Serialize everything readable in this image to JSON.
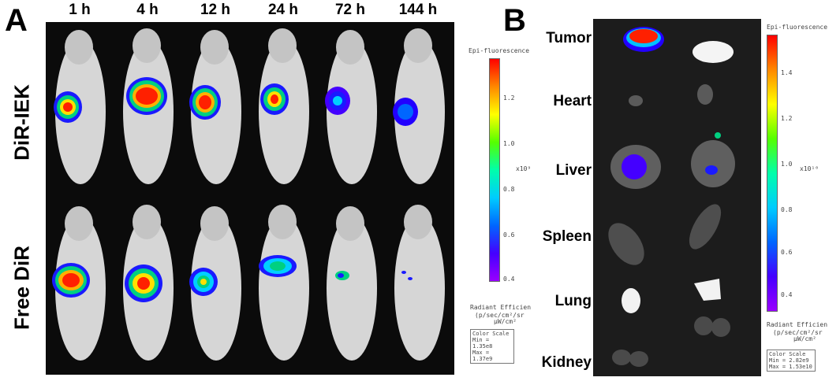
{
  "panel_a": {
    "letter": "A",
    "time_points": [
      "1 h",
      "4 h",
      "12 h",
      "24 h",
      "72 h",
      "144 h"
    ],
    "rows": [
      "DiR-IEK",
      "Free DiR"
    ],
    "colorbar": {
      "title": "Epi-fluorescence",
      "ticks": [
        "1.2",
        "1.0",
        "0.8",
        "0.6",
        "0.4"
      ],
      "multiplier": "x10⁹",
      "units_line1": "Radiant Efficien",
      "units_line2": "(p/sec/cm²/sr",
      "units_line3": "μW/cm²",
      "box_title": "Color Scale",
      "box_min": "Min = 1.35e8",
      "box_max": "Max = 1.37e9"
    }
  },
  "panel_b": {
    "letter": "B",
    "organs": [
      "Tumor",
      "Heart",
      "Liver",
      "Spleen",
      "Lung",
      "Kidney"
    ],
    "colorbar": {
      "title": "Epi-fluorescence",
      "ticks": [
        "1.4",
        "1.2",
        "1.0",
        "0.8",
        "0.6",
        "0.4"
      ],
      "multiplier": "x10¹⁰",
      "units_line1": "Radiant Efficien",
      "units_line2": "(p/sec/cm²/sr",
      "units_line3": "μW/cm²",
      "box_title": "Color Scale",
      "box_min": "Min = 2.82e9",
      "box_max": "Max = 1.53e10"
    }
  }
}
